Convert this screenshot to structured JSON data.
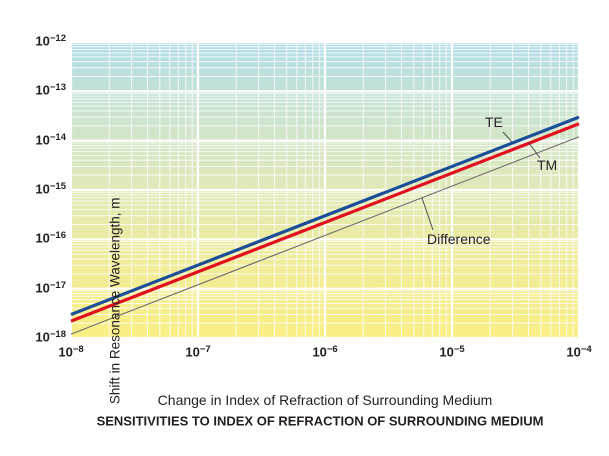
{
  "figure": {
    "caption": "SENSITIVITIES TO INDEX OF REFRACTION OF SURROUNDING MEDIUM"
  },
  "chart_data": {
    "type": "line",
    "title": "",
    "xlabel": "Change in Index of Refraction of Surrounding Medium",
    "ylabel": "Shift in Resonance Wavelength, m",
    "x_scale": "log",
    "y_scale": "log",
    "xlim": [
      1e-08,
      0.0001
    ],
    "ylim": [
      1e-18,
      1e-12
    ],
    "x_ticks": [
      "10^−8",
      "10^−7",
      "10^−6",
      "10^−5",
      "10^−4"
    ],
    "y_ticks": [
      "10^−12",
      "10^−13",
      "10^−14",
      "10^−15",
      "10^−16",
      "10^−17",
      "10^−18"
    ],
    "grid": "white log grid (minor + major) over colored gradient background",
    "gridline_color": "#ffffff",
    "background_gradient": [
      "#b2dce6",
      "#cde4cf",
      "#e0e9b8",
      "#f0ec9a",
      "#f9ef85"
    ],
    "legend_position": "inline-annotations",
    "series": [
      {
        "name": "TE",
        "color": "#1b4e97",
        "width": 3.2,
        "x": [
          1e-08,
          0.0001
        ],
        "y": [
          3e-18,
          3e-14
        ]
      },
      {
        "name": "TM",
        "color": "#e0101f",
        "width": 3.2,
        "x": [
          1e-08,
          0.0001
        ],
        "y": [
          2.2e-18,
          2.2e-14
        ]
      },
      {
        "name": "Difference",
        "color": "#6b6b6b",
        "width": 1.1,
        "x": [
          1e-08,
          0.0001
        ],
        "y": [
          1.2e-18,
          1.2e-14
        ]
      }
    ]
  }
}
